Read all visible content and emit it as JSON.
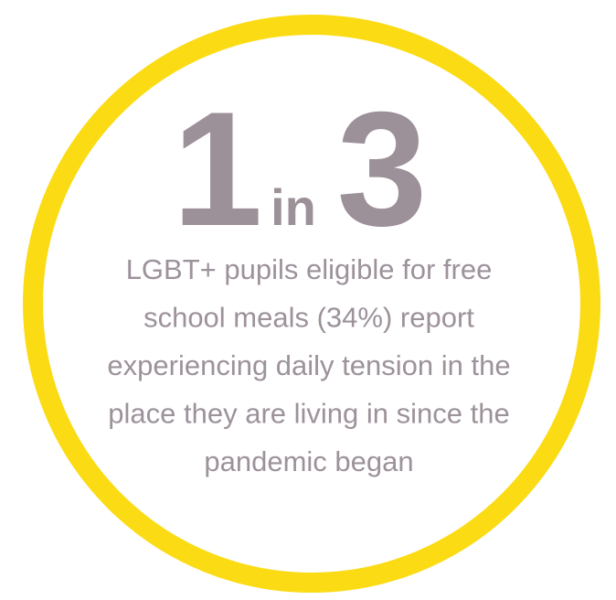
{
  "headline": {
    "number": "1",
    "joiner": "in",
    "total": "3"
  },
  "description": {
    "lines": [
      "LGBT+ pupils eligible for free",
      "school meals (34%) report",
      "experiencing daily tension in the",
      "place they are living in since the",
      "pandemic began"
    ]
  }
}
